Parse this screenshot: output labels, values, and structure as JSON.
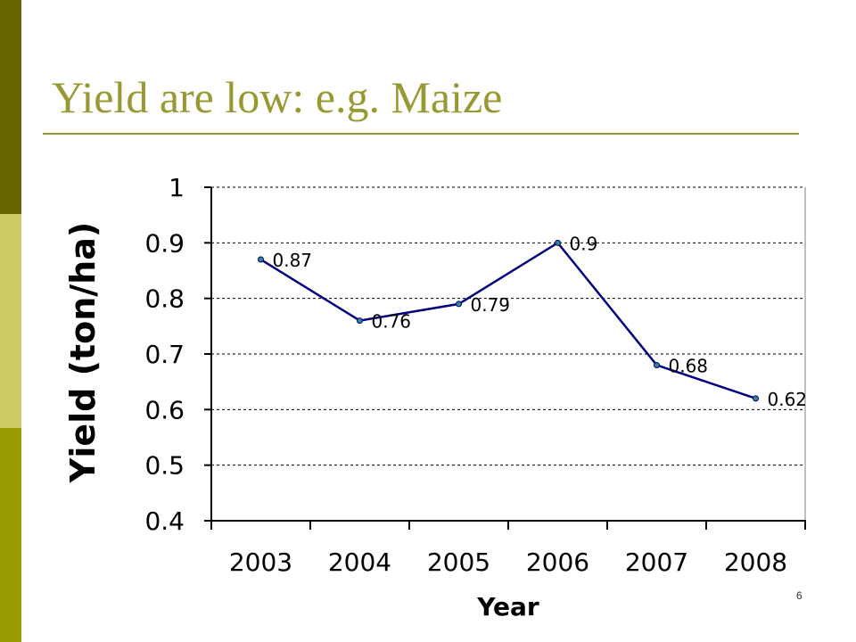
{
  "slide": {
    "title": "Yield are low: e.g. Maize",
    "page_number": "6",
    "colors": {
      "title": "#999933",
      "bar_dark": "#666600",
      "bar_light": "#cccc66",
      "bar_olive": "#999900",
      "line": "#000080",
      "marker": "#2e8b8b"
    }
  },
  "chart_data": {
    "type": "line",
    "title": "",
    "xlabel": "Year",
    "ylabel": "Yield (ton/ha)",
    "categories": [
      "2003",
      "2004",
      "2005",
      "2006",
      "2007",
      "2008"
    ],
    "series": [
      {
        "values": [
          0.87,
          0.76,
          0.79,
          0.9,
          0.68,
          0.62
        ],
        "labels": [
          "0.87",
          "0.76",
          "0.79",
          "0.9",
          "0.68",
          "0.62"
        ]
      }
    ],
    "ylim": [
      0.4,
      1
    ],
    "yticks": [
      "0.4",
      "0.5",
      "0.6",
      "0.7",
      "0.8",
      "0.9",
      "1"
    ],
    "grid": true,
    "legend": "none"
  }
}
